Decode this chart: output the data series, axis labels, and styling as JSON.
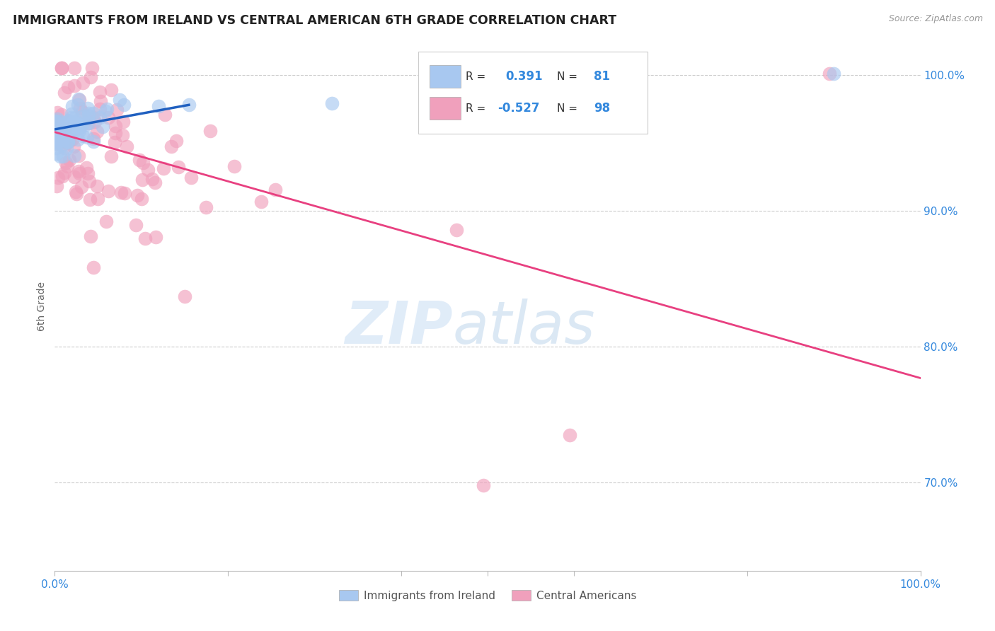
{
  "title": "IMMIGRANTS FROM IRELAND VS CENTRAL AMERICAN 6TH GRADE CORRELATION CHART",
  "source": "Source: ZipAtlas.com",
  "ylabel": "6th Grade",
  "xlim": [
    0.0,
    1.0
  ],
  "ylim": [
    0.635,
    1.025
  ],
  "yticks": [
    0.7,
    0.8,
    0.9,
    1.0
  ],
  "ytick_labels": [
    "70.0%",
    "80.0%",
    "90.0%",
    "100.0%"
  ],
  "blue_r": 0.391,
  "blue_n": 81,
  "pink_r": -0.527,
  "pink_n": 98,
  "blue_color": "#a8c8f0",
  "pink_color": "#f0a0bc",
  "blue_line_color": "#2060c0",
  "pink_line_color": "#e84080",
  "legend_blue_label": "Immigrants from Ireland",
  "legend_pink_label": "Central Americans",
  "watermark_zip": "ZIP",
  "watermark_atlas": "atlas",
  "background_color": "#ffffff",
  "title_color": "#222222",
  "axis_label_color": "#3388dd",
  "grid_color": "#cccccc",
  "blue_line_x0": 0.0,
  "blue_line_y0": 0.96,
  "blue_line_x1": 0.155,
  "blue_line_y1": 0.978,
  "pink_line_x0": 0.0,
  "pink_line_y0": 0.958,
  "pink_line_x1": 1.0,
  "pink_line_y1": 0.777
}
